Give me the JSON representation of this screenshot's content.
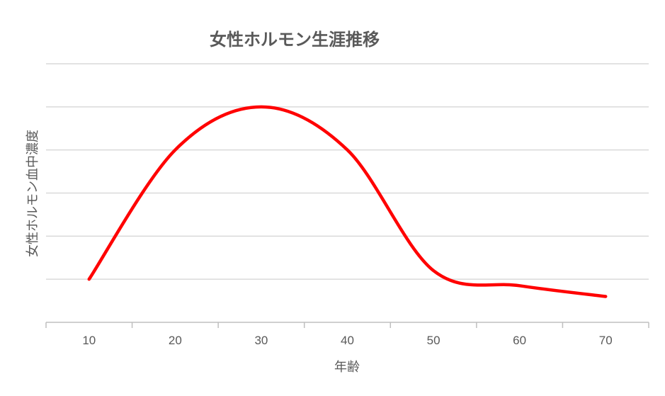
{
  "chart_data": {
    "type": "line",
    "title": "女性ホルモン生涯推移",
    "xlabel": "年齢",
    "ylabel": "女性ホルモン血中濃度",
    "categories": [
      "10",
      "20",
      "30",
      "40",
      "50",
      "60",
      "70"
    ],
    "x": [
      10,
      20,
      30,
      40,
      50,
      60,
      70
    ],
    "series": [
      {
        "values": [
          1.0,
          4.0,
          5.0,
          4.0,
          1.2,
          0.85,
          0.6
        ],
        "color": "#ff0000",
        "smooth": true
      }
    ],
    "ylim": [
      0,
      6
    ],
    "ygrid_step": 1,
    "y_tick_labels_shown": false,
    "grid": true,
    "legend": "none"
  }
}
